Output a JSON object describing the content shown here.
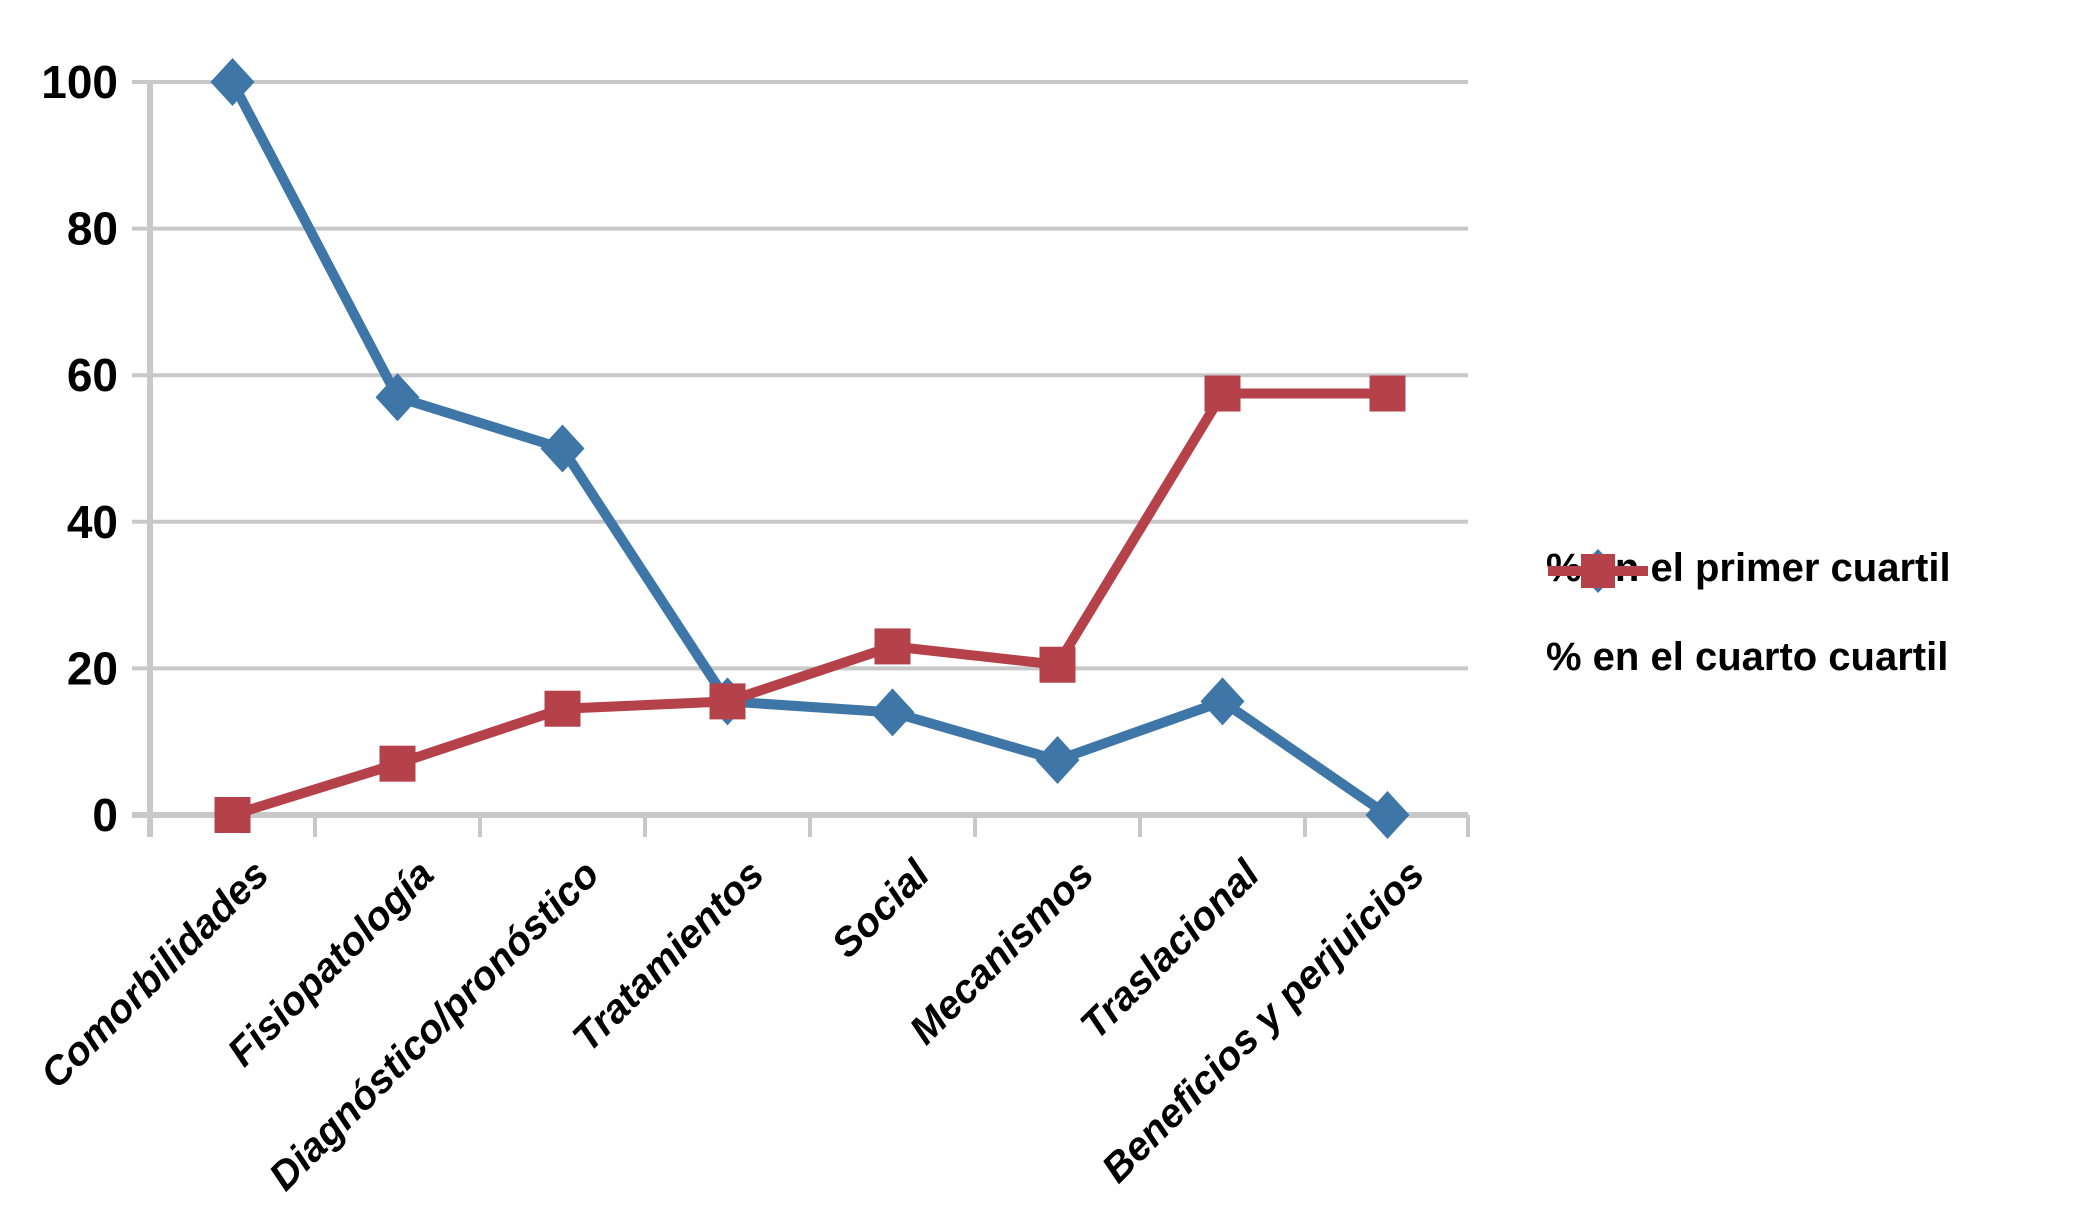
{
  "chart_data": {
    "type": "line",
    "title": "",
    "xlabel": "",
    "ylabel": "",
    "categories": [
      "Comorbilidades",
      "Fisiopatología",
      "Diagnóstico/pronóstico",
      "Tratamientos",
      "Social",
      "Mecanismos",
      "Traslacional",
      "Beneficios y perjuicios"
    ],
    "series": [
      {
        "name": "% en el primer cuartil",
        "marker": "diamond",
        "color": "#3E76A8",
        "values": [
          100,
          57,
          50,
          15.5,
          14,
          7.5,
          15.5,
          0
        ]
      },
      {
        "name": "% en el cuarto cuartil",
        "marker": "square",
        "color": "#B5424B",
        "values": [
          0,
          7,
          14.5,
          15.5,
          23,
          20.5,
          57.5,
          57.5
        ]
      }
    ],
    "yticks": [
      100,
      80,
      60,
      40,
      20,
      0
    ],
    "ylim": [
      0,
      100
    ],
    "grid": true,
    "gridline_color": "#C8C8C8",
    "background": "#FFFFFF",
    "legend_position": "right"
  }
}
